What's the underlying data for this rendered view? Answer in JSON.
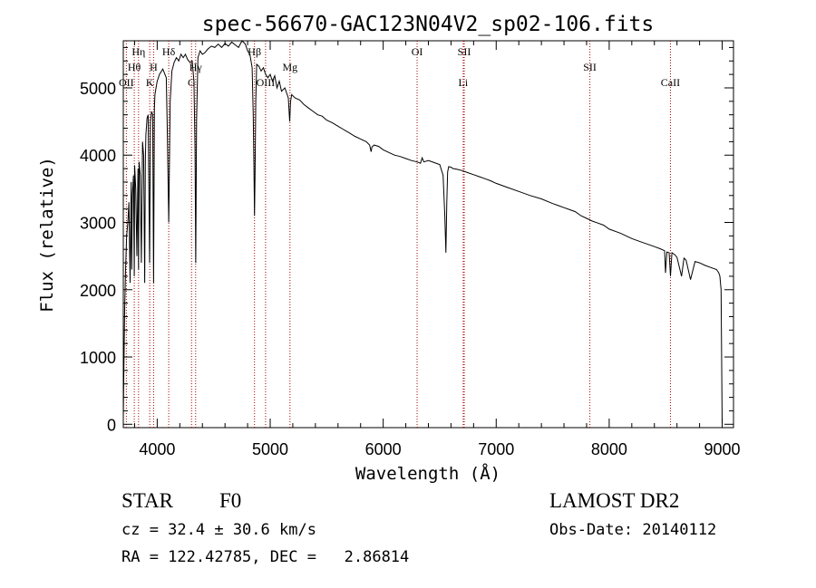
{
  "chart_data": {
    "type": "line",
    "title": "spec-56670-GAC123N04V2_sp02-106.fits",
    "xlabel": "Wavelength (Å)",
    "ylabel": "Flux (relative)",
    "xlim": [
      3700,
      9100
    ],
    "ylim": [
      -50,
      5700
    ],
    "x_ticks": [
      4000,
      5000,
      6000,
      7000,
      8000,
      9000
    ],
    "y_ticks": [
      0,
      1000,
      2000,
      3000,
      4000,
      5000
    ],
    "series": [
      {
        "name": "flux",
        "x": [
          3700,
          3705,
          3712,
          3720,
          3730,
          3740,
          3750,
          3760,
          3770,
          3775,
          3780,
          3790,
          3797,
          3800,
          3810,
          3820,
          3830,
          3835,
          3840,
          3850,
          3860,
          3870,
          3880,
          3889,
          3895,
          3900,
          3910,
          3920,
          3933,
          3940,
          3950,
          3960,
          3968,
          3975,
          3980,
          3990,
          4000,
          4020,
          4050,
          4080,
          4090,
          4102,
          4115,
          4130,
          4150,
          4170,
          4190,
          4210,
          4230,
          4250,
          4270,
          4290,
          4310,
          4325,
          4335,
          4341,
          4348,
          4360,
          4380,
          4400,
          4420,
          4450,
          4480,
          4510,
          4540,
          4570,
          4600,
          4630,
          4660,
          4690,
          4720,
          4750,
          4780,
          4800,
          4820,
          4840,
          4850,
          4856,
          4861,
          4866,
          4872,
          4880,
          4900,
          4920,
          4940,
          4960,
          4980,
          5000,
          5020,
          5040,
          5060,
          5080,
          5100,
          5130,
          5160,
          5172,
          5180,
          5190,
          5220,
          5260,
          5300,
          5340,
          5380,
          5420,
          5460,
          5500,
          5550,
          5600,
          5650,
          5700,
          5750,
          5800,
          5850,
          5880,
          5893,
          5900,
          5920,
          5960,
          6000,
          6050,
          6100,
          6150,
          6200,
          6250,
          6300,
          6330,
          6345,
          6360,
          6400,
          6450,
          6500,
          6530,
          6545,
          6555,
          6563,
          6570,
          6580,
          6600,
          6620,
          6650,
          6700,
          6750,
          6800,
          6850,
          6900,
          6950,
          7000,
          7100,
          7200,
          7300,
          7400,
          7500,
          7550,
          7600,
          7650,
          7700,
          7750,
          7800,
          7850,
          7900,
          7950,
          8000,
          8100,
          8200,
          8300,
          8400,
          8450,
          8490,
          8498,
          8510,
          8530,
          8542,
          8555,
          8580,
          8600,
          8640,
          8662,
          8680,
          8720,
          8760,
          8800,
          8850,
          8900,
          8950,
          8970,
          8980,
          8990,
          9000
        ],
        "y": [
          100,
          800,
          1700,
          2300,
          2800,
          3000,
          3300,
          2100,
          3600,
          2300,
          3400,
          3700,
          2200,
          3850,
          3500,
          2500,
          3800,
          2300,
          3900,
          3700,
          2400,
          4200,
          4000,
          2100,
          3900,
          4300,
          4550,
          4600,
          2400,
          4500,
          4650,
          4600,
          2100,
          4700,
          4900,
          5000,
          5100,
          5200,
          5280,
          5150,
          4300,
          3000,
          4800,
          5250,
          5380,
          5450,
          5400,
          5500,
          5450,
          5500,
          5420,
          5380,
          5400,
          5100,
          4100,
          2400,
          4500,
          5450,
          5550,
          5500,
          5520,
          5580,
          5620,
          5600,
          5650,
          5600,
          5660,
          5620,
          5680,
          5640,
          5600,
          5700,
          5650,
          5550,
          5500,
          5300,
          4600,
          3800,
          3100,
          3700,
          4800,
          5350,
          5320,
          5250,
          5300,
          5200,
          5150,
          5200,
          5100,
          5180,
          5000,
          5100,
          4950,
          5000,
          4850,
          4500,
          4800,
          4900,
          4850,
          4820,
          4750,
          4700,
          4650,
          4600,
          4580,
          4520,
          4480,
          4430,
          4380,
          4330,
          4280,
          4240,
          4200,
          4150,
          4050,
          4120,
          4150,
          4130,
          4080,
          4040,
          4000,
          3980,
          3950,
          3920,
          3900,
          3880,
          3960,
          3900,
          3920,
          3890,
          3860,
          3700,
          3100,
          2550,
          3300,
          3750,
          3830,
          3820,
          3800,
          3790,
          3770,
          3740,
          3710,
          3680,
          3650,
          3620,
          3580,
          3520,
          3460,
          3400,
          3350,
          3280,
          3250,
          3220,
          3190,
          3160,
          3100,
          3060,
          3020,
          2990,
          2960,
          2900,
          2840,
          2760,
          2700,
          2640,
          2610,
          2580,
          2250,
          2560,
          2550,
          2200,
          2550,
          2520,
          2480,
          2200,
          2470,
          2440,
          2150,
          2420,
          2400,
          2360,
          2330,
          2300,
          2250,
          2200,
          2000,
          0
        ]
      }
    ],
    "lines": [
      {
        "label": "OII",
        "x": 3727,
        "row": 3
      },
      {
        "label": "Hθ",
        "x": 3797,
        "row": 2
      },
      {
        "label": "Hη",
        "x": 3835,
        "row": 1
      },
      {
        "label": "K",
        "x": 3934,
        "row": 3
      },
      {
        "label": "H",
        "x": 3968,
        "row": 2
      },
      {
        "label": "Hδ",
        "x": 4102,
        "row": 1
      },
      {
        "label": "G",
        "x": 4304,
        "row": 3
      },
      {
        "label": "Hγ",
        "x": 4340,
        "row": 2
      },
      {
        "label": "Hβ",
        "x": 4861,
        "row": 1
      },
      {
        "label": "OIII",
        "x": 4959,
        "row": 3
      },
      {
        "label": "Mg",
        "x": 5175,
        "row": 2
      },
      {
        "label": "OI",
        "x": 6300,
        "row": 1
      },
      {
        "label": "SII",
        "x": 6717,
        "row": 1
      },
      {
        "label": "Li",
        "x": 6708,
        "row": 3
      },
      {
        "label": "SII",
        "x": 7829,
        "row": 2
      },
      {
        "label": "CaII",
        "x": 8542,
        "row": 3
      }
    ]
  },
  "info": {
    "object_type": "STAR",
    "subclass": "F0",
    "survey": "LAMOST DR2",
    "redshift_line": "cz = 32.4 ± 30.6 km/s",
    "obs_date_line": "Obs-Date: 20140112",
    "coords_line": "RA = 122.42785, DEC =   2.86814"
  }
}
